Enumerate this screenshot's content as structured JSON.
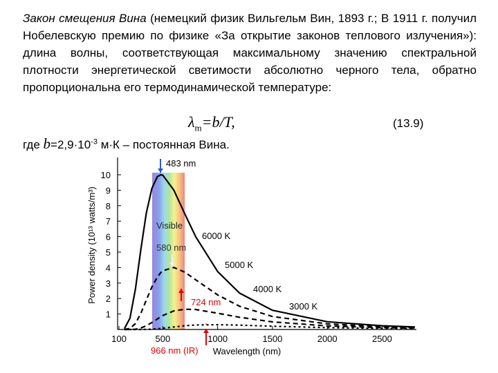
{
  "text": {
    "title": "Закон смещения Вина",
    "body": " (немецкий физик Вильгельм Вин, 1893 г.; В 1911 г. получил Нобелевскую премию по физике «За открытие законов теплового излучения»): длина волны, соответствующая максимальному значению спектральной плотности энергетической светимости абсолютно черного тела, обратно пропорциональна его термодинамической температуре:",
    "formula": {
      "symbol": "λ",
      "subscript": "m",
      "rest": "=b/T,",
      "number": "(13.9)"
    },
    "note": {
      "prefix": "где ",
      "variable": "b",
      "value": "=2,9·10",
      "exponent": "-3",
      "suffix": " м·К – постоянная Вина."
    }
  },
  "chart_data": {
    "type": "line",
    "x_label": "Wavelength (nm)",
    "y_label": "Power density (10¹³ watts/m³)",
    "x": [
      150,
      200,
      250,
      300,
      350,
      400,
      450,
      483,
      500,
      600,
      700,
      800,
      1000,
      1200,
      1500,
      2000,
      2500,
      2800
    ],
    "series": [
      {
        "name": "6000 K",
        "color": "#000000",
        "line_style": "solid",
        "values": [
          0.06,
          0.73,
          2.61,
          5.19,
          7.54,
          9.12,
          9.88,
          10,
          9.97,
          9.01,
          7.48,
          5.99,
          3.74,
          2.35,
          1.24,
          0.5,
          0.24,
          0.16
        ]
      },
      {
        "name": "5000 K",
        "color": "#000000",
        "line_style": "dashed",
        "values": [
          0,
          0.07,
          0.38,
          1.05,
          1.91,
          2.75,
          3.39,
          3.69,
          3.8,
          4.01,
          3.71,
          3.21,
          2.23,
          1.5,
          0.84,
          0.36,
          0.18,
          0.12
        ]
      },
      {
        "name": "4000 K",
        "color": "#000000",
        "line_style": "dashed",
        "values": [
          0,
          0,
          0.02,
          0.1,
          0.24,
          0.45,
          0.68,
          0.83,
          0.9,
          1.2,
          1.31,
          1.29,
          1.05,
          0.79,
          0.49,
          0.23,
          0.12,
          0.08
        ]
      },
      {
        "name": "3000 K",
        "color": "#000000",
        "line_style": "dotted",
        "values": [
          0,
          0,
          0,
          0,
          0.01,
          0.02,
          0.05,
          0.07,
          0.08,
          0.16,
          0.24,
          0.29,
          0.31,
          0.28,
          0.21,
          0.12,
          0.07,
          0.05
        ]
      }
    ],
    "annotations": [
      "483 nm",
      "Visible",
      "580 nm",
      "724 nm",
      "966 nm (IR)"
    ],
    "xlim": [
      100,
      2800
    ],
    "xticks": [
      100,
      500,
      1000,
      1500,
      2000,
      2500
    ],
    "ylim": [
      0,
      11
    ],
    "yticks": [
      1,
      2,
      3,
      4,
      5,
      6,
      7,
      8,
      9,
      10
    ],
    "grid": false
  }
}
